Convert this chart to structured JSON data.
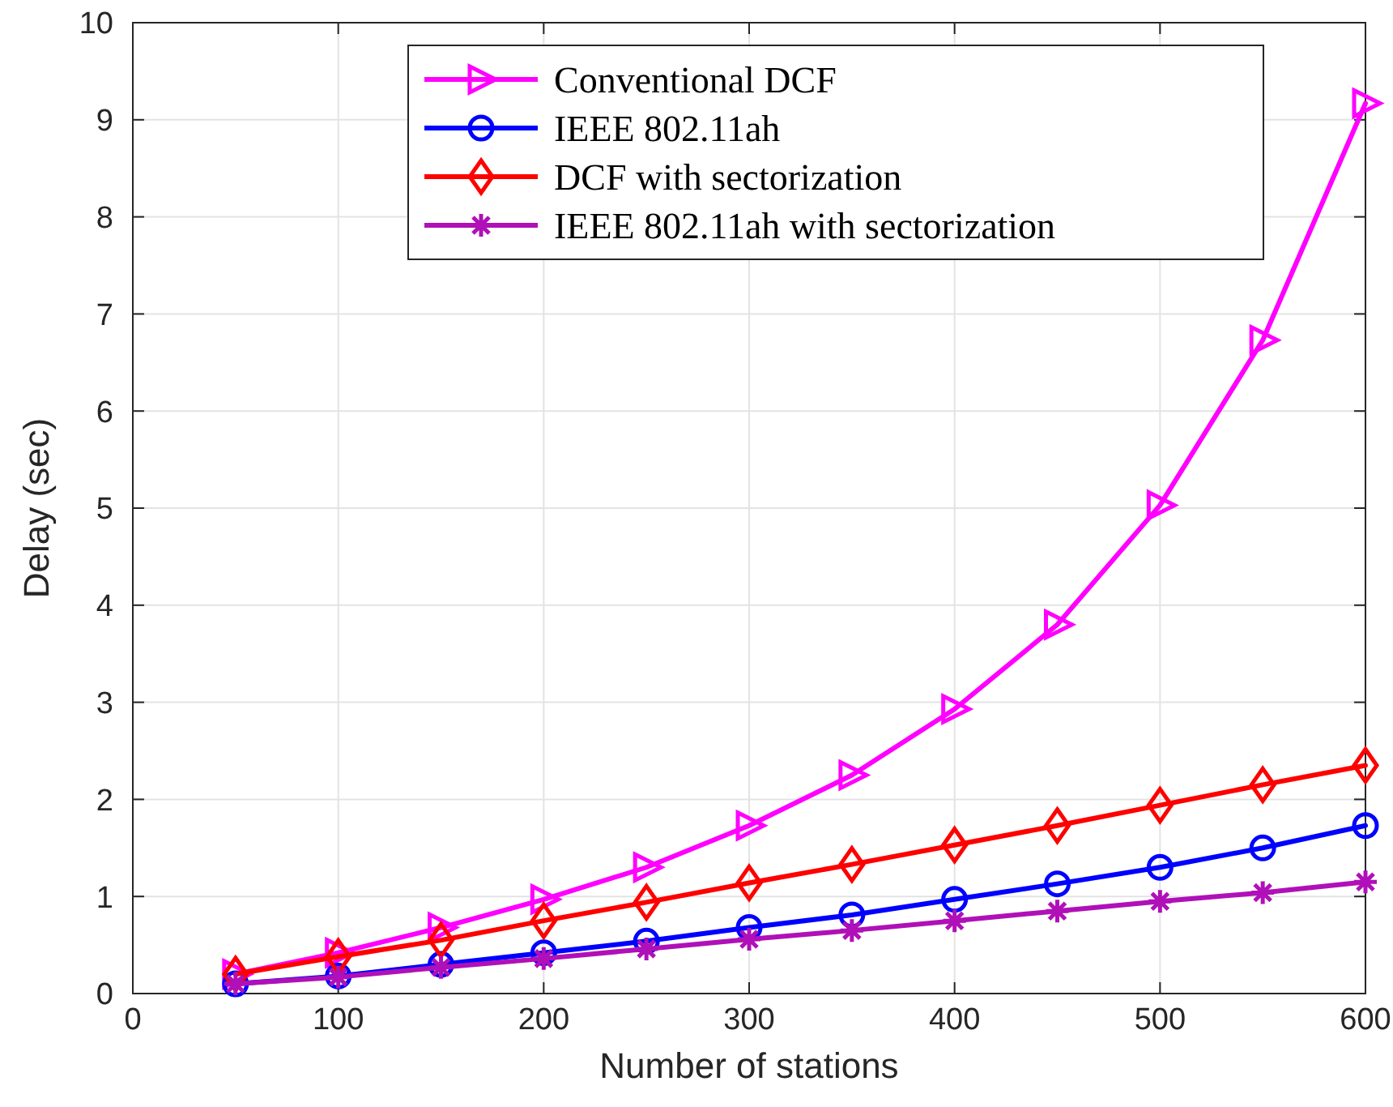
{
  "chart_data": {
    "type": "line",
    "xlabel": "Number of stations",
    "ylabel": "Delay (sec)",
    "x": [
      50,
      100,
      150,
      200,
      250,
      300,
      350,
      400,
      450,
      500,
      550,
      600
    ],
    "xlim": [
      0,
      600
    ],
    "xticks": [
      0,
      100,
      200,
      300,
      400,
      500,
      600
    ],
    "ylim": [
      0,
      10
    ],
    "yticks": [
      0,
      1,
      2,
      3,
      4,
      5,
      6,
      7,
      8,
      9,
      10
    ],
    "grid": true,
    "legend": "top right",
    "line_style": "solid",
    "series": [
      {
        "name": "Conventional DCF",
        "color": "#ff00ff",
        "marker": "triangle",
        "values": [
          0.2,
          0.42,
          0.68,
          0.97,
          1.3,
          1.73,
          2.25,
          2.93,
          3.8,
          5.03,
          6.73,
          9.17
        ]
      },
      {
        "name": "IEEE 802.11ah",
        "color": "#0000ff",
        "marker": "circle",
        "values": [
          0.1,
          0.18,
          0.3,
          0.42,
          0.54,
          0.68,
          0.81,
          0.97,
          1.13,
          1.3,
          1.5,
          1.73
        ]
      },
      {
        "name": "DCF with sectorization",
        "color": "#ff0000",
        "marker": "diamond",
        "values": [
          0.2,
          0.38,
          0.55,
          0.75,
          0.94,
          1.14,
          1.33,
          1.53,
          1.73,
          1.94,
          2.15,
          2.35
        ]
      },
      {
        "name": "IEEE 802.11ah with sectorization",
        "color": "#b010b8",
        "marker": "cross",
        "values": [
          0.1,
          0.17,
          0.27,
          0.36,
          0.46,
          0.56,
          0.65,
          0.75,
          0.85,
          0.95,
          1.04,
          1.15
        ]
      }
    ]
  }
}
